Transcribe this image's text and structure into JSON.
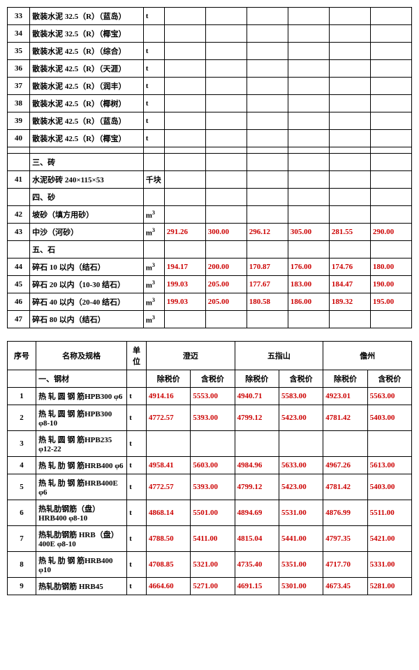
{
  "table1": {
    "columns_value_count": 6,
    "rows": [
      {
        "num": "33",
        "name": "散装水泥 32.5（R）（蓝岛）",
        "unit": "t",
        "vals": [
          "",
          "",
          "",
          "",
          "",
          ""
        ]
      },
      {
        "num": "34",
        "name": "散装水泥 32.5（R）（椰宝）",
        "unit": "",
        "vals": [
          "",
          "",
          "",
          "",
          "",
          ""
        ]
      },
      {
        "num": "35",
        "name": "散装水泥 42.5（R）（综合）",
        "unit": "t",
        "vals": [
          "",
          "",
          "",
          "",
          "",
          ""
        ]
      },
      {
        "num": "36",
        "name": "散装水泥 42.5（R）（天涯）",
        "unit": "t",
        "vals": [
          "",
          "",
          "",
          "",
          "",
          ""
        ]
      },
      {
        "num": "37",
        "name": "散装水泥 42.5（R）（润丰）",
        "unit": "t",
        "vals": [
          "",
          "",
          "",
          "",
          "",
          ""
        ]
      },
      {
        "num": "38",
        "name": "散装水泥 42.5（R）（椰树）",
        "unit": "t",
        "vals": [
          "",
          "",
          "",
          "",
          "",
          ""
        ]
      },
      {
        "num": "39",
        "name": "散装水泥 42.5（R）（蓝岛）",
        "unit": "t",
        "vals": [
          "",
          "",
          "",
          "",
          "",
          ""
        ]
      },
      {
        "num": "40",
        "name": "散装水泥 42.5（R）（椰宝）",
        "unit": "t",
        "vals": [
          "",
          "",
          "",
          "",
          "",
          ""
        ]
      },
      {
        "num": "",
        "name": "",
        "unit": "",
        "vals": [
          "",
          "",
          "",
          "",
          "",
          ""
        ]
      },
      {
        "num": "",
        "name": "三、砖",
        "unit": "",
        "vals": [
          "",
          "",
          "",
          "",
          "",
          ""
        ],
        "section": true
      },
      {
        "num": "41",
        "name": "水泥砂砖 240×115×53",
        "unit": "千块",
        "vals": [
          "",
          "",
          "",
          "",
          "",
          ""
        ]
      },
      {
        "num": "",
        "name": "四、砂",
        "unit": "",
        "vals": [
          "",
          "",
          "",
          "",
          "",
          ""
        ],
        "section": true
      },
      {
        "num": "42",
        "name": "坡砂（填方用砂）",
        "unit": "m³",
        "vals": [
          "",
          "",
          "",
          "",
          "",
          ""
        ]
      },
      {
        "num": "43",
        "name": "中沙（河砂）",
        "unit": "m³",
        "vals": [
          "291.26",
          "300.00",
          "296.12",
          "305.00",
          "281.55",
          "290.00"
        ],
        "red": true
      },
      {
        "num": "",
        "name": "五、石",
        "unit": "",
        "vals": [
          "",
          "",
          "",
          "",
          "",
          ""
        ],
        "section": true
      },
      {
        "num": "44",
        "name": "碎石 10 以内（结石）",
        "unit": "m³",
        "vals": [
          "194.17",
          "200.00",
          "170.87",
          "176.00",
          "174.76",
          "180.00"
        ],
        "red": true
      },
      {
        "num": "45",
        "name": "碎石 20 以内（10-30 结石）",
        "unit": "m³",
        "vals": [
          "199.03",
          "205.00",
          "177.67",
          "183.00",
          "184.47",
          "190.00"
        ],
        "red": true
      },
      {
        "num": "46",
        "name": "碎石 40 以内（20-40 结石）",
        "unit": "m³",
        "vals": [
          "199.03",
          "205.00",
          "180.58",
          "186.00",
          "189.32",
          "195.00"
        ],
        "red": true
      },
      {
        "num": "47",
        "name": "碎石 80 以内（结石）",
        "unit": "m³",
        "vals": [
          "",
          "",
          "",
          "",
          "",
          ""
        ]
      }
    ]
  },
  "table2": {
    "header": {
      "seq": "序号",
      "name": "名称及规格",
      "unit": "单位",
      "regions": [
        "澄迈",
        "五指山",
        "儋州"
      ],
      "sub": [
        "除税价",
        "含税价",
        "除税价",
        "含税价",
        "除税价",
        "含税价"
      ]
    },
    "rows": [
      {
        "num": "",
        "name": "一、钢材",
        "unit": "",
        "vals": [
          "",
          "",
          "",
          "",
          "",
          ""
        ],
        "section": true,
        "subheader": true
      },
      {
        "num": "1",
        "name": "热 轧 圆 钢 筋HPB300 φ6",
        "unit": "t",
        "vals": [
          "4914.16",
          "5553.00",
          "4940.71",
          "5583.00",
          "4923.01",
          "5563.00"
        ],
        "red": true
      },
      {
        "num": "2",
        "name": "热 轧 圆 钢 筋HPB300 φ8-10",
        "unit": "t",
        "vals": [
          "4772.57",
          "5393.00",
          "4799.12",
          "5423.00",
          "4781.42",
          "5403.00"
        ],
        "red": true
      },
      {
        "num": "3",
        "name": "热 轧 圆 钢 筋HPB235 φ12-22",
        "unit": "t",
        "vals": [
          "",
          "",
          "",
          "",
          "",
          ""
        ]
      },
      {
        "num": "4",
        "name": "热 轧 肋 钢 筋HRB400 φ6",
        "unit": "t",
        "vals": [
          "4958.41",
          "5603.00",
          "4984.96",
          "5633.00",
          "4967.26",
          "5613.00"
        ],
        "red": true
      },
      {
        "num": "5",
        "name": "热 轧 肋 钢 筋HRB400E φ6",
        "unit": "t",
        "vals": [
          "4772.57",
          "5393.00",
          "4799.12",
          "5423.00",
          "4781.42",
          "5403.00"
        ],
        "red": true
      },
      {
        "num": "6",
        "name": "热轧肋钢筋（盘）HRB400 φ8-10",
        "unit": "t",
        "vals": [
          "4868.14",
          "5501.00",
          "4894.69",
          "5531.00",
          "4876.99",
          "5511.00"
        ],
        "red": true
      },
      {
        "num": "7",
        "name": "热轧肋钢筋 HRB（盘）400E φ8-10",
        "unit": "t",
        "vals": [
          "4788.50",
          "5411.00",
          "4815.04",
          "5441.00",
          "4797.35",
          "5421.00"
        ],
        "red": true
      },
      {
        "num": "8",
        "name": "热 轧 肋 钢 筋HRB400 φ10",
        "unit": "t",
        "vals": [
          "4708.85",
          "5321.00",
          "4735.40",
          "5351.00",
          "4717.70",
          "5331.00"
        ],
        "red": true
      },
      {
        "num": "9",
        "name": "热轧肋钢筋 HRB45",
        "unit": "t",
        "vals": [
          "4664.60",
          "5271.00",
          "4691.15",
          "5301.00",
          "4673.45",
          "5281.00"
        ],
        "red": true
      }
    ]
  },
  "style": {
    "text_color": "#000000",
    "price_color": "#cc0000",
    "border_color": "#000000",
    "background": "#ffffff",
    "font_size_pt": 11
  }
}
